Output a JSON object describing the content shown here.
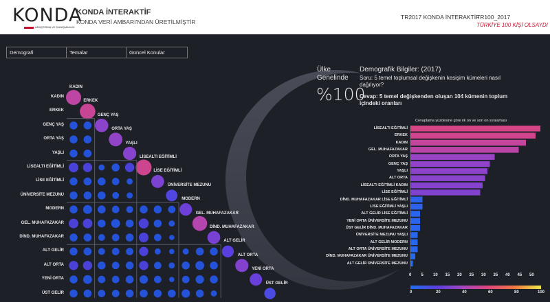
{
  "header": {
    "logo_text": "KONDA",
    "logo_sub": "ARAŞTIRMA VE DANIŞMANLIK",
    "title": "KONDA İNTERAKTİF",
    "subtitle": "KONDA VERİ AMBARI'NDAN ÜRETİLMİŞTİR",
    "nav_1": "TR2017 KONDA İNTERAKTİF",
    "nav_2": "TR100_2017",
    "nav_2_sub": "TÜRKİYE 100 KİŞİ OLSAYDI"
  },
  "tabs": [
    {
      "label": "Demografi"
    },
    {
      "label": "Temalar"
    },
    {
      "label": "Güncel Konular"
    }
  ],
  "info": {
    "scope_line1": "Ülke",
    "scope_line2": "Genelinde",
    "percent": "%100",
    "heading": "Demografik Bilgiler: (2017)",
    "question": "Soru: 5 temel toplumsal değişkenin kesişim kümeleri nasıl dağılıyor?",
    "answer": "Cevap: 5 temel değişkenden oluşan 104 kümenin toplum içindeki oranları"
  },
  "colors": {
    "background": "#1e2027",
    "blue": "#2a55e0",
    "accent": "#c8102e"
  },
  "matrix": {
    "labels": [
      "KADIN",
      "ERKEK",
      "GENÇ YAŞ",
      "ORTA YAŞ",
      "YAŞLI",
      "LİSEALTI EĞİTİMLİ",
      "LİSE EĞİTİMLİ",
      "ÜNİVERSİTE MEZUNU",
      "MODERN",
      "GEL. MUHAFAZAKAR",
      "DİND. MUHAFAZAKAR",
      "ALT GELİR",
      "ALT ORTA",
      "YENİ ORTA",
      "ÜST GELİR"
    ],
    "group_starts": [
      2,
      5,
      8,
      11
    ],
    "diagonal": [
      48,
      52,
      33,
      35,
      32,
      54,
      29,
      17,
      25,
      45,
      28,
      20,
      31,
      24,
      15
    ],
    "cells": [
      [],
      [],
      [
        5,
        5
      ],
      [
        5,
        5
      ],
      [
        5,
        5
      ],
      [
        9,
        8,
        2,
        5,
        8
      ],
      [
        5,
        5,
        5,
        4,
        2
      ],
      [
        5,
        5,
        5,
        3,
        2
      ],
      [
        5,
        7,
        5,
        4,
        3,
        5,
        5,
        4
      ],
      [
        9,
        9,
        5,
        7,
        5,
        10,
        5,
        2
      ],
      [
        5,
        5,
        3,
        4,
        5,
        9,
        4,
        1
      ],
      [
        5,
        5,
        3,
        4,
        4,
        8,
        2,
        1,
        2,
        5,
        5
      ],
      [
        8,
        8,
        5,
        4,
        5,
        8,
        4,
        2,
        5,
        7,
        5
      ],
      [
        5,
        7,
        4,
        4,
        5,
        6,
        4,
        1,
        4,
        6,
        5
      ],
      [
        5,
        5,
        4,
        4,
        5,
        5,
        5,
        5,
        6,
        5,
        2
      ]
    ]
  },
  "chart_data": {
    "type": "bar",
    "orientation": "horizontal",
    "title": "Cevaplama yüzdesine göre ilk on ve son on sıralaması",
    "categories": [
      "LİSEALTI EĞİTİMLİ",
      "ERKEK",
      "KADIN",
      "GEL. MUHAFAZAKAR",
      "ORTA YAŞ",
      "GENÇ YAŞ",
      "YAŞLI",
      "ALT ORTA",
      "LİSEALTI EĞİTİMLİ KADIN",
      "LİSE EĞİTİMLİ",
      "DİND. MUHAFAZAKAR LİSE EĞİTİMLİ",
      "LİSE EĞİTİMLİ YAŞLI",
      "ALT GELİR LİSE EĞİTİMLİ",
      "YENİ ORTA ÜNİVERSİTE MEZUNU",
      "ÜST GELİR DİND. MUHAFAZAKAR",
      "ÜNİVERSİTE MEZUNU YAŞLI",
      "ALT GELİR MODERN",
      "ALT ORTA ÜNİVERSİTE MEZUNU",
      "DİND. MUHAFAZAKAR ÜNİVERSİTE MEZUNU",
      "ALT GELİR ÜNİVERSİTE MEZUNU"
    ],
    "values": [
      54,
      52,
      48,
      45,
      35,
      33,
      32,
      31,
      30,
      29,
      5,
      5,
      4,
      4,
      4,
      3,
      3,
      3,
      2,
      1
    ],
    "xticks": [
      "0",
      "5",
      "10",
      "15",
      "20",
      "25",
      "30",
      "35",
      "40",
      "45",
      "50"
    ],
    "xlim": [
      0,
      55
    ],
    "colorscale": {
      "ticks": [
        "0",
        "20",
        "40",
        "60",
        "80",
        "100"
      ],
      "colors": [
        "#1f6ff0",
        "#5a3fe0",
        "#a545c0",
        "#e0457a",
        "#f07a40",
        "#eee84a"
      ]
    }
  }
}
